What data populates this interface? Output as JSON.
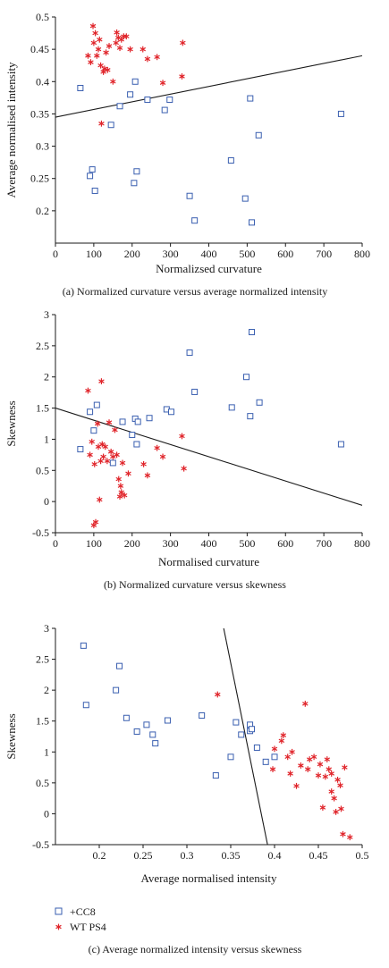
{
  "colors": {
    "cc8": "#3a5fb0",
    "wt": "#e0242a",
    "axis": "#1a1a1a",
    "line": "#1a1a1a"
  },
  "legend": {
    "items": [
      {
        "label": "+CC8",
        "marker": "square",
        "series": "cc8"
      },
      {
        "label": "WT PS4",
        "marker": "star",
        "series": "wt"
      }
    ]
  },
  "chart_data": [
    {
      "type": "scatter",
      "caption": "(a)  Normalized curvature versus average normalized intensity",
      "xlabel": "Normalizsed curvature",
      "ylabel": "Average normalised intensity",
      "xlim": [
        0,
        800
      ],
      "ylim": [
        0.15,
        0.5
      ],
      "xticks": [
        0,
        100,
        200,
        300,
        400,
        500,
        600,
        700,
        800
      ],
      "xtick_labels": [
        "0",
        "100",
        "200",
        "300",
        "400",
        "500",
        "600",
        "700",
        "800"
      ],
      "yticks": [
        0.2,
        0.25,
        0.3,
        0.35,
        0.4,
        0.45,
        0.5
      ],
      "ytick_labels": [
        "0.2",
        "0.25",
        "0.3",
        "0.35",
        "0.4",
        "0.45",
        "0.5"
      ],
      "series": [
        {
          "key": "cc8",
          "marker": "square",
          "points": [
            [
              65,
              0.39
            ],
            [
              90,
              0.254
            ],
            [
              96,
              0.264
            ],
            [
              103,
              0.231
            ],
            [
              145,
              0.333
            ],
            [
              168,
              0.362
            ],
            [
              195,
              0.38
            ],
            [
              205,
              0.243
            ],
            [
              208,
              0.4
            ],
            [
              212,
              0.261
            ],
            [
              240,
              0.372
            ],
            [
              285,
              0.356
            ],
            [
              298,
              0.372
            ],
            [
              350,
              0.223
            ],
            [
              363,
              0.185
            ],
            [
              458,
              0.278
            ],
            [
              495,
              0.219
            ],
            [
              508,
              0.374
            ],
            [
              512,
              0.182
            ],
            [
              530,
              0.317
            ],
            [
              745,
              0.35
            ]
          ]
        },
        {
          "key": "wt",
          "marker": "star",
          "points": [
            [
              85,
              0.44
            ],
            [
              92,
              0.43
            ],
            [
              98,
              0.486
            ],
            [
              100,
              0.46
            ],
            [
              104,
              0.475
            ],
            [
              108,
              0.44
            ],
            [
              112,
              0.45
            ],
            [
              115,
              0.465
            ],
            [
              118,
              0.425
            ],
            [
              120,
              0.335
            ],
            [
              125,
              0.415
            ],
            [
              128,
              0.42
            ],
            [
              132,
              0.445
            ],
            [
              136,
              0.418
            ],
            [
              140,
              0.455
            ],
            [
              150,
              0.4
            ],
            [
              158,
              0.46
            ],
            [
              160,
              0.476
            ],
            [
              164,
              0.468
            ],
            [
              168,
              0.452
            ],
            [
              172,
              0.465
            ],
            [
              178,
              0.47
            ],
            [
              185,
              0.47
            ],
            [
              195,
              0.45
            ],
            [
              228,
              0.45
            ],
            [
              240,
              0.435
            ],
            [
              265,
              0.438
            ],
            [
              280,
              0.398
            ],
            [
              330,
              0.408
            ],
            [
              332,
              0.46
            ]
          ]
        }
      ],
      "fit_line": [
        [
          0,
          0.345
        ],
        [
          800,
          0.44
        ]
      ]
    },
    {
      "type": "scatter",
      "caption": "(b)  Normalized curvature versus skewness",
      "xlabel": "Normalised curvature",
      "ylabel": "Skewness",
      "xlim": [
        0,
        800
      ],
      "ylim": [
        -0.5,
        3
      ],
      "xticks": [
        0,
        100,
        200,
        300,
        400,
        500,
        600,
        700,
        800
      ],
      "xtick_labels": [
        "0",
        "100",
        "200",
        "300",
        "400",
        "500",
        "600",
        "700",
        "800"
      ],
      "yticks": [
        -0.5,
        0,
        0.5,
        1,
        1.5,
        2,
        2.5,
        3
      ],
      "ytick_labels": [
        "-0.5",
        "0",
        "0.5",
        "1",
        "1.5",
        "2",
        "2.5",
        "3"
      ],
      "series": [
        {
          "key": "cc8",
          "marker": "square",
          "points": [
            [
              65,
              0.84
            ],
            [
              90,
              1.44
            ],
            [
              100,
              1.14
            ],
            [
              108,
              1.55
            ],
            [
              150,
              0.62
            ],
            [
              175,
              1.28
            ],
            [
              200,
              1.07
            ],
            [
              208,
              1.33
            ],
            [
              212,
              0.92
            ],
            [
              215,
              1.28
            ],
            [
              245,
              1.34
            ],
            [
              290,
              1.48
            ],
            [
              302,
              1.44
            ],
            [
              350,
              2.39
            ],
            [
              363,
              1.76
            ],
            [
              460,
              1.51
            ],
            [
              498,
              2.0
            ],
            [
              508,
              1.37
            ],
            [
              512,
              2.72
            ],
            [
              532,
              1.59
            ],
            [
              745,
              0.92
            ]
          ]
        },
        {
          "key": "wt",
          "marker": "star",
          "points": [
            [
              85,
              1.78
            ],
            [
              90,
              0.75
            ],
            [
              95,
              0.96
            ],
            [
              100,
              -0.38
            ],
            [
              102,
              0.6
            ],
            [
              105,
              -0.33
            ],
            [
              110,
              1.25
            ],
            [
              112,
              0.88
            ],
            [
              115,
              0.03
            ],
            [
              118,
              0.65
            ],
            [
              120,
              1.93
            ],
            [
              122,
              0.92
            ],
            [
              125,
              0.72
            ],
            [
              130,
              0.88
            ],
            [
              135,
              0.65
            ],
            [
              140,
              1.27
            ],
            [
              145,
              0.8
            ],
            [
              150,
              0.72
            ],
            [
              155,
              1.15
            ],
            [
              160,
              0.75
            ],
            [
              165,
              0.36
            ],
            [
              168,
              0.08
            ],
            [
              170,
              0.25
            ],
            [
              172,
              0.15
            ],
            [
              175,
              0.62
            ],
            [
              180,
              0.1
            ],
            [
              190,
              0.45
            ],
            [
              230,
              0.6
            ],
            [
              240,
              0.42
            ],
            [
              265,
              0.86
            ],
            [
              280,
              0.72
            ],
            [
              330,
              1.05
            ],
            [
              335,
              0.53
            ]
          ]
        }
      ],
      "fit_line": [
        [
          0,
          1.5
        ],
        [
          800,
          -0.06
        ]
      ]
    },
    {
      "type": "scatter",
      "caption": "(c)  Average normalized intensity versus skewness",
      "xlabel": "Average normalised intensity",
      "ylabel": "Skewness",
      "xlim": [
        0.15,
        0.5
      ],
      "ylim": [
        -0.5,
        3
      ],
      "xticks": [
        0.2,
        0.25,
        0.3,
        0.35,
        0.4,
        0.45,
        0.5
      ],
      "xtick_labels": [
        "0.2",
        "0.25",
        "0.3",
        "0.35",
        "0.4",
        "0.45",
        "0.5"
      ],
      "yticks": [
        -0.5,
        0,
        0.5,
        1,
        1.5,
        2,
        2.5,
        3
      ],
      "ytick_labels": [
        "-0.5",
        "0",
        "0.5",
        "1",
        "1.5",
        "2",
        "2.5",
        "3"
      ],
      "series": [
        {
          "key": "cc8",
          "marker": "square",
          "points": [
            [
              0.182,
              2.72
            ],
            [
              0.185,
              1.76
            ],
            [
              0.219,
              2.0
            ],
            [
              0.223,
              2.39
            ],
            [
              0.231,
              1.55
            ],
            [
              0.243,
              1.33
            ],
            [
              0.254,
              1.44
            ],
            [
              0.261,
              1.28
            ],
            [
              0.264,
              1.14
            ],
            [
              0.278,
              1.51
            ],
            [
              0.317,
              1.59
            ],
            [
              0.333,
              0.62
            ],
            [
              0.35,
              0.92
            ],
            [
              0.356,
              1.48
            ],
            [
              0.362,
              1.28
            ],
            [
              0.372,
              1.44
            ],
            [
              0.372,
              1.34
            ],
            [
              0.374,
              1.37
            ],
            [
              0.38,
              1.07
            ],
            [
              0.39,
              0.84
            ],
            [
              0.4,
              0.92
            ]
          ]
        },
        {
          "key": "wt",
          "marker": "star",
          "points": [
            [
              0.335,
              1.93
            ],
            [
              0.398,
              0.72
            ],
            [
              0.4,
              1.05
            ],
            [
              0.408,
              1.18
            ],
            [
              0.41,
              1.27
            ],
            [
              0.415,
              0.92
            ],
            [
              0.418,
              0.65
            ],
            [
              0.42,
              1.0
            ],
            [
              0.425,
              0.45
            ],
            [
              0.43,
              0.78
            ],
            [
              0.435,
              1.78
            ],
            [
              0.438,
              0.72
            ],
            [
              0.44,
              0.88
            ],
            [
              0.445,
              0.92
            ],
            [
              0.45,
              0.62
            ],
            [
              0.452,
              0.8
            ],
            [
              0.455,
              0.1
            ],
            [
              0.458,
              0.6
            ],
            [
              0.46,
              0.88
            ],
            [
              0.462,
              0.72
            ],
            [
              0.465,
              0.65
            ],
            [
              0.465,
              0.36
            ],
            [
              0.468,
              0.25
            ],
            [
              0.47,
              0.03
            ],
            [
              0.472,
              0.55
            ],
            [
              0.475,
              0.46
            ],
            [
              0.476,
              0.08
            ],
            [
              0.478,
              -0.33
            ],
            [
              0.48,
              0.75
            ],
            [
              0.486,
              -0.38
            ]
          ]
        }
      ],
      "fit_line": [
        [
          0.342,
          3.0
        ],
        [
          0.392,
          -0.5
        ]
      ]
    }
  ]
}
